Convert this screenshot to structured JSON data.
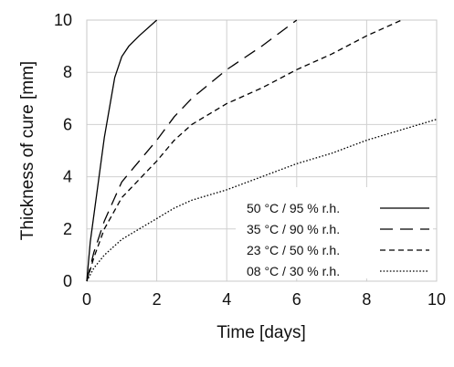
{
  "chart_data": {
    "type": "line",
    "xlabel": "Time [days]",
    "ylabel": "Thickness of cure [mm]",
    "xlim": [
      0,
      10
    ],
    "ylim": [
      0,
      10
    ],
    "xticks": [
      "0",
      "2",
      "4",
      "6",
      "8",
      "10"
    ],
    "yticks": [
      "0",
      "2",
      "4",
      "6",
      "8",
      "10"
    ],
    "grid": true,
    "legend": "bottom-right",
    "series": [
      {
        "name": "50 °C / 95 % r.h.",
        "dash": "solid",
        "x": [
          0,
          0.1,
          0.3,
          0.5,
          0.8,
          1.0,
          1.2,
          1.5,
          2.0
        ],
        "y": [
          0,
          1.5,
          3.5,
          5.5,
          7.8,
          8.6,
          9.0,
          9.4,
          10.0
        ]
      },
      {
        "name": "35 °C / 90 % r.h.",
        "dash": "long-dash",
        "x": [
          0,
          0.2,
          0.5,
          0.8,
          1.0,
          1.5,
          2.0,
          2.5,
          3.0,
          4.0,
          5.0,
          6.0
        ],
        "y": [
          0,
          1.1,
          2.3,
          3.2,
          3.8,
          4.6,
          5.4,
          6.3,
          7.0,
          8.1,
          9.0,
          10.0
        ]
      },
      {
        "name": "23 °C / 50 % r.h.",
        "dash": "dash",
        "x": [
          0,
          0.2,
          0.5,
          1.0,
          1.5,
          2.0,
          2.5,
          3.0,
          4.0,
          5.0,
          6.0,
          7.0,
          8.0,
          9.0
        ],
        "y": [
          0,
          0.9,
          2.0,
          3.2,
          3.9,
          4.6,
          5.4,
          6.0,
          6.8,
          7.4,
          8.1,
          8.7,
          9.4,
          10.0
        ]
      },
      {
        "name": "08 °C / 30 % r.h.",
        "dash": "dot",
        "x": [
          0,
          0.2,
          0.5,
          1.0,
          1.5,
          2.0,
          2.5,
          3.0,
          4.0,
          5.0,
          6.0,
          7.0,
          8.0,
          9.0,
          10.0
        ],
        "y": [
          0,
          0.5,
          1.0,
          1.6,
          2.0,
          2.4,
          2.8,
          3.1,
          3.5,
          4.0,
          4.5,
          4.9,
          5.4,
          5.8,
          6.2
        ]
      }
    ]
  }
}
